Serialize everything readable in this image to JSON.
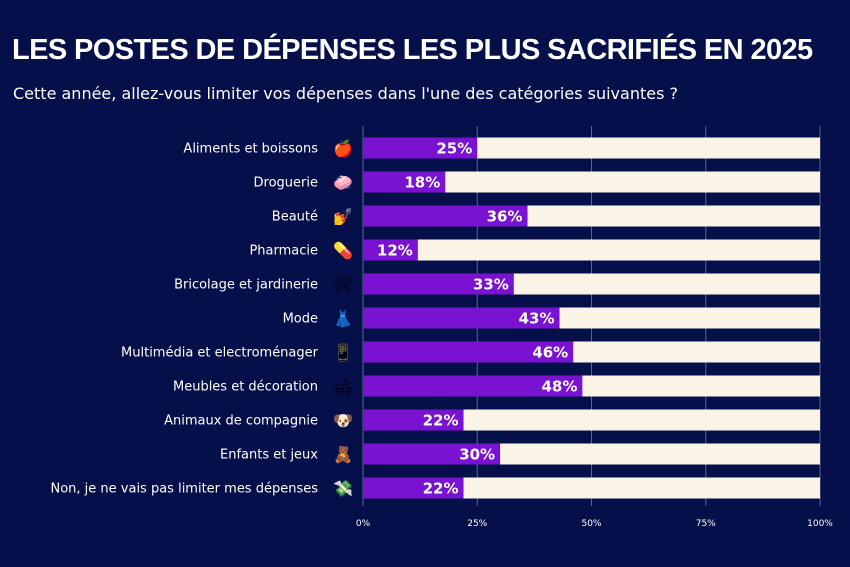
{
  "header": {
    "title": "LES POSTES DE DÉPENSES LES PLUS SACRIFIÉS EN 2025",
    "subtitle": "Cette année, allez-vous limiter vos dépenses dans l'une des catégories suivantes ?"
  },
  "colors": {
    "background": "#05104a",
    "bar": "#7a13d1",
    "track": "#fbf3e6",
    "grid": "#5a6490"
  },
  "chart_data": {
    "type": "bar",
    "orientation": "horizontal",
    "stacked_to_total": true,
    "xlim": [
      0,
      100
    ],
    "ticks": [
      "0%",
      "25%",
      "50%",
      "75%",
      "100%"
    ],
    "grid": true,
    "categories": [
      "Aliments et boissons",
      "Droguerie",
      "Beauté",
      "Pharmacie",
      "Bricolage et jardinerie",
      "Mode",
      "Multimédia et electroménager",
      "Meubles et décoration",
      "Animaux de compagnie",
      "Enfants et jeux",
      "Non, je ne vais pas limiter mes dépenses"
    ],
    "icons": [
      "apple-icon",
      "soap-icon",
      "nail-polish-icon",
      "pill-icon",
      "tools-icon",
      "dress-icon",
      "mobile-phone-icon",
      "couch-lamp-icon",
      "dog-icon",
      "teddy-bear-icon",
      "money-wings-icon"
    ],
    "icon_glyphs": [
      "🍎",
      "🧼",
      "💅",
      "💊",
      "🛠",
      "👗",
      "📱",
      "🛋",
      "🐶",
      "🧸",
      "💸"
    ],
    "values": [
      25,
      18,
      36,
      12,
      33,
      43,
      46,
      48,
      22,
      30,
      22
    ],
    "value_labels": [
      "25%",
      "18%",
      "36%",
      "12%",
      "33%",
      "43%",
      "46%",
      "48%",
      "22%",
      "30%",
      "22%"
    ]
  }
}
